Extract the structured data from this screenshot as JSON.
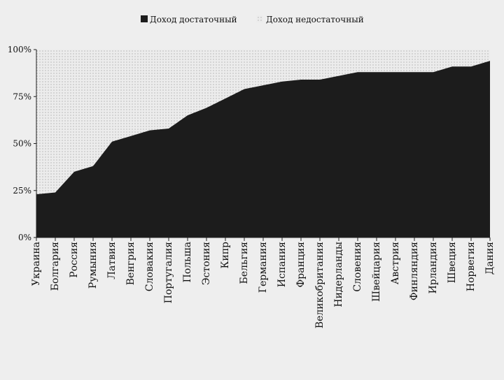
{
  "chart_data": {
    "type": "area",
    "title": "",
    "xlabel": "",
    "ylabel": "",
    "ylim": [
      0,
      100
    ],
    "yticks": [
      "0%",
      "25%",
      "50%",
      "75%",
      "100%"
    ],
    "categories": [
      "Украина",
      "Болгария",
      "Россия",
      "Румыния",
      "Латвия",
      "Венгрия",
      "Словакия",
      "Португалия",
      "Польша",
      "Эстония",
      "Кипр",
      "Бельгия",
      "Германия",
      "Испания",
      "Франция",
      "Великобритания",
      "Нидерланды",
      "Словения",
      "Швейцария",
      "Австрия",
      "Финляндия",
      "Ирландия",
      "Швеция",
      "Норвегия",
      "Дания"
    ],
    "series": [
      {
        "name": "Доход достаточный",
        "values": [
          23,
          24,
          35,
          38,
          51,
          54,
          57,
          58,
          65,
          69,
          74,
          79,
          81,
          83,
          84,
          84,
          86,
          88,
          88,
          88,
          88,
          88,
          91,
          91,
          94
        ],
        "color": "#1c1c1c"
      },
      {
        "name": "Доход недостаточный",
        "values": [
          77,
          76,
          65,
          62,
          49,
          46,
          43,
          42,
          35,
          31,
          26,
          21,
          19,
          17,
          16,
          16,
          14,
          12,
          12,
          12,
          12,
          12,
          9,
          9,
          6
        ],
        "color": "#e4e4e4",
        "pattern": "dotted"
      }
    ],
    "stacked": true,
    "percent": true,
    "legend": "top-center",
    "grid": false
  }
}
